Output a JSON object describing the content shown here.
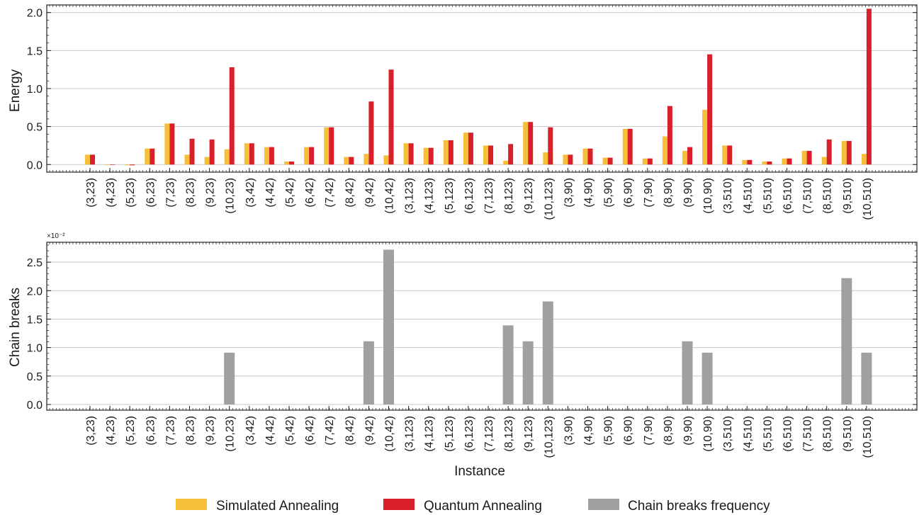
{
  "chart_data": [
    {
      "type": "bar",
      "title": "",
      "xlabel": "",
      "ylabel": "Energy",
      "ylim": [
        -0.1,
        2.1
      ],
      "yticks": [
        "0.0",
        "0.5",
        "1.0",
        "1.5",
        "2.0"
      ],
      "ytick_values": [
        0,
        0.5,
        1.0,
        1.5,
        2.0
      ],
      "grid": true,
      "categories": [
        "(3,23)",
        "(4,23)",
        "(5,23)",
        "(6,23)",
        "(7,23)",
        "(8,23)",
        "(9,23)",
        "(10,23)",
        "(3,42)",
        "(4,42)",
        "(5,42)",
        "(6,42)",
        "(7,42)",
        "(8,42)",
        "(9,42)",
        "(10,42)",
        "(3,123)",
        "(4,123)",
        "(5,123)",
        "(6,123)",
        "(7,123)",
        "(8,123)",
        "(9,123)",
        "(10,123)",
        "(3,90)",
        "(4,90)",
        "(5,90)",
        "(6,90)",
        "(7,90)",
        "(8,90)",
        "(9,90)",
        "(10,90)",
        "(3,510)",
        "(4,510)",
        "(5,510)",
        "(6,510)",
        "(7,510)",
        "(8,510)",
        "(9,510)",
        "(10,510)"
      ],
      "series": [
        {
          "name": "Simulated Annealing",
          "color": "#f5bf3a",
          "values": [
            0.13,
            0.0,
            -0.01,
            0.21,
            0.54,
            0.13,
            0.1,
            0.2,
            0.28,
            0.23,
            0.04,
            0.23,
            0.49,
            0.1,
            0.14,
            0.12,
            0.28,
            0.22,
            0.32,
            0.42,
            0.25,
            0.05,
            0.56,
            0.16,
            0.13,
            0.21,
            0.09,
            0.47,
            0.08,
            0.37,
            0.18,
            0.72,
            0.25,
            0.06,
            0.04,
            0.08,
            0.18,
            0.1,
            0.31,
            0.14
          ]
        },
        {
          "name": "Quantum Annealing",
          "color": "#d9202a",
          "values": [
            0.13,
            0.0,
            -0.01,
            0.21,
            0.54,
            0.34,
            0.33,
            1.28,
            0.28,
            0.23,
            0.04,
            0.23,
            0.49,
            0.1,
            0.83,
            1.25,
            0.28,
            0.22,
            0.32,
            0.42,
            0.25,
            0.27,
            0.56,
            0.49,
            0.13,
            0.21,
            0.09,
            0.47,
            0.08,
            0.77,
            0.23,
            1.45,
            0.25,
            0.06,
            0.04,
            0.08,
            0.18,
            0.33,
            0.31,
            2.05
          ]
        }
      ]
    },
    {
      "type": "bar",
      "title": "",
      "xlabel": "Instance",
      "ylabel": "Chain breaks",
      "multiplier_label": "×10⁻²",
      "ylim": [
        -0.1,
        2.85
      ],
      "yticks": [
        "0.0",
        "0.5",
        "1.0",
        "1.5",
        "2.0",
        "2.5"
      ],
      "ytick_values": [
        0,
        0.5,
        1.0,
        1.5,
        2.0,
        2.5
      ],
      "grid": true,
      "categories": [
        "(3,23)",
        "(4,23)",
        "(5,23)",
        "(6,23)",
        "(7,23)",
        "(8,23)",
        "(9,23)",
        "(10,23)",
        "(3,42)",
        "(4,42)",
        "(5,42)",
        "(6,42)",
        "(7,42)",
        "(8,42)",
        "(9,42)",
        "(10,42)",
        "(3,123)",
        "(4,123)",
        "(5,123)",
        "(6,123)",
        "(7,123)",
        "(8,123)",
        "(9,123)",
        "(10,123)",
        "(3,90)",
        "(4,90)",
        "(5,90)",
        "(6,90)",
        "(7,90)",
        "(8,90)",
        "(9,90)",
        "(10,90)",
        "(3,510)",
        "(4,510)",
        "(5,510)",
        "(6,510)",
        "(7,510)",
        "(8,510)",
        "(9,510)",
        "(10,510)"
      ],
      "series": [
        {
          "name": "Chain breaks frequency",
          "color": "#a0a0a0",
          "values": [
            0,
            0,
            0,
            0,
            0,
            0,
            0,
            0.91,
            0,
            0,
            0,
            0,
            0,
            0,
            1.11,
            2.72,
            0,
            0,
            0,
            0,
            0,
            1.39,
            1.11,
            1.81,
            0,
            0,
            0,
            0,
            0,
            0,
            1.11,
            0.91,
            0,
            0,
            0,
            0,
            0,
            0,
            2.22,
            0.91
          ]
        }
      ]
    }
  ],
  "legend": {
    "placement": "bottom-center",
    "items": [
      {
        "label": "Simulated Annealing",
        "color": "#f5bf3a"
      },
      {
        "label": "Quantum Annealing",
        "color": "#d9202a"
      },
      {
        "label": "Chain breaks frequency",
        "color": "#a0a0a0"
      }
    ]
  }
}
